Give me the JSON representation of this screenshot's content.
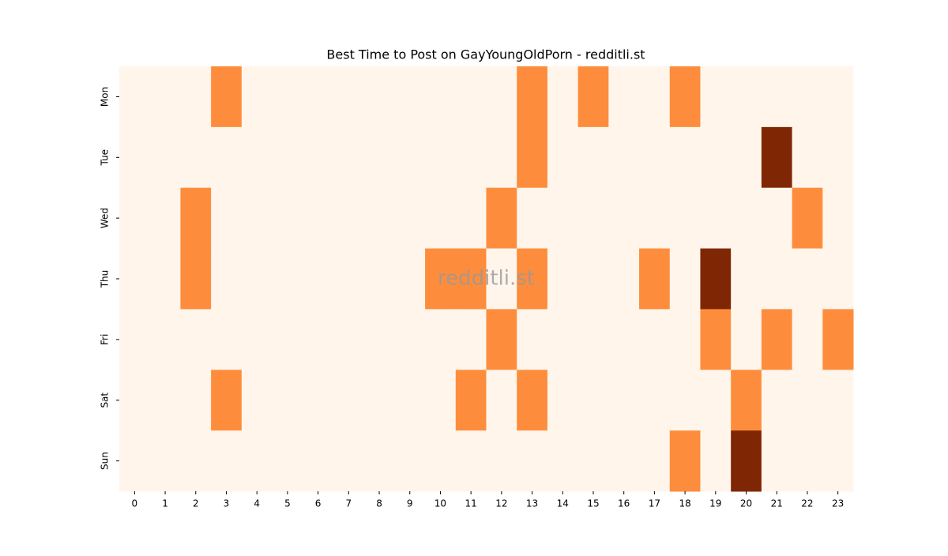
{
  "chart_data": {
    "type": "heatmap",
    "title": "Best Time to Post on GayYoungOldPorn - redditli.st",
    "watermark": "redditli.st",
    "x_categories": [
      "0",
      "1",
      "2",
      "3",
      "4",
      "5",
      "6",
      "7",
      "8",
      "9",
      "10",
      "11",
      "12",
      "13",
      "14",
      "15",
      "16",
      "17",
      "18",
      "19",
      "20",
      "21",
      "22",
      "23"
    ],
    "y_categories": [
      "Mon",
      "Tue",
      "Wed",
      "Thu",
      "Fri",
      "Sat",
      "Sun"
    ],
    "values": [
      [
        0,
        0,
        0,
        1,
        0,
        0,
        0,
        0,
        0,
        0,
        0,
        0,
        0,
        1,
        0,
        1,
        0,
        0,
        1,
        0,
        0,
        0,
        0,
        0
      ],
      [
        0,
        0,
        0,
        0,
        0,
        0,
        0,
        0,
        0,
        0,
        0,
        0,
        0,
        1,
        0,
        0,
        0,
        0,
        0,
        0,
        0,
        2,
        0,
        0
      ],
      [
        0,
        0,
        1,
        0,
        0,
        0,
        0,
        0,
        0,
        0,
        0,
        0,
        1,
        0,
        0,
        0,
        0,
        0,
        0,
        0,
        0,
        0,
        1,
        0
      ],
      [
        0,
        0,
        1,
        0,
        0,
        0,
        0,
        0,
        0,
        0,
        1,
        1,
        0,
        1,
        0,
        0,
        0,
        1,
        0,
        2,
        0,
        0,
        0,
        0
      ],
      [
        0,
        0,
        0,
        0,
        0,
        0,
        0,
        0,
        0,
        0,
        0,
        0,
        1,
        0,
        0,
        0,
        0,
        0,
        0,
        1,
        0,
        1,
        0,
        1
      ],
      [
        0,
        0,
        0,
        1,
        0,
        0,
        0,
        0,
        0,
        0,
        0,
        1,
        0,
        1,
        0,
        0,
        0,
        0,
        0,
        0,
        1,
        0,
        0,
        0
      ],
      [
        0,
        0,
        0,
        0,
        0,
        0,
        0,
        0,
        0,
        0,
        0,
        0,
        0,
        0,
        0,
        0,
        0,
        0,
        1,
        0,
        2,
        0,
        0,
        0
      ]
    ],
    "clim": [
      0,
      2
    ],
    "colors": [
      "#fff5eb",
      "#fd8d3c",
      "#7f2704"
    ]
  }
}
